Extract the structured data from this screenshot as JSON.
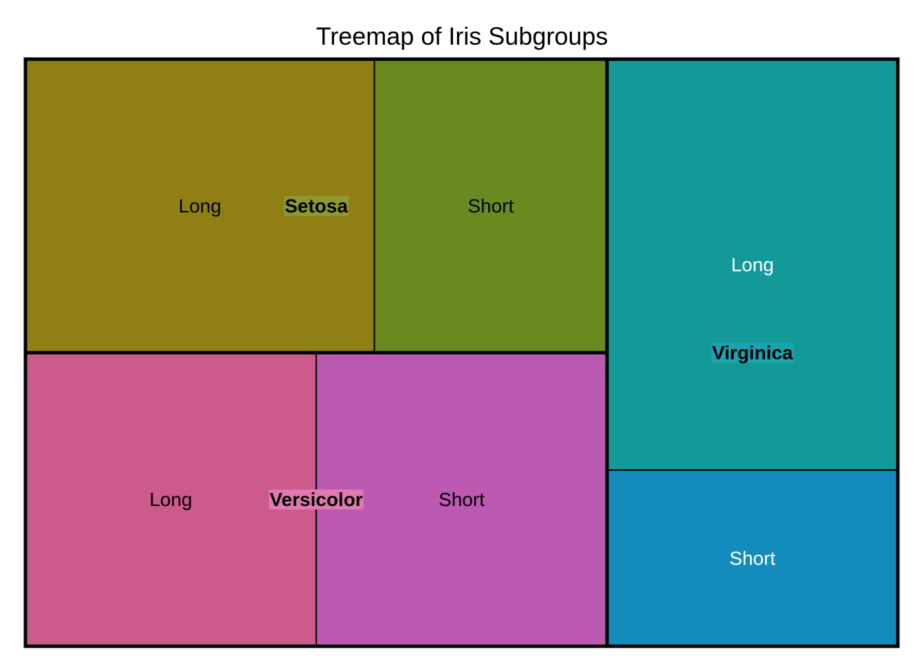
{
  "chart_data": {
    "type": "treemap",
    "title": "Treemap of Iris Subgroups",
    "groups": [
      {
        "name": "Setosa",
        "label_bg": "#8e9a2e",
        "children": [
          {
            "name": "Long",
            "value": 30,
            "color": "#8f7f14",
            "text_color": "#000000"
          },
          {
            "name": "Short",
            "value": 20,
            "color": "#6a8a20",
            "text_color": "#000000"
          }
        ]
      },
      {
        "name": "Versicolor",
        "label_bg": "#e07ab0",
        "children": [
          {
            "name": "Long",
            "value": 25,
            "color": "#cc5a8b",
            "text_color": "#000000"
          },
          {
            "name": "Short",
            "value": 25,
            "color": "#bc5ab3",
            "text_color": "#000000"
          }
        ]
      },
      {
        "name": "Virginica",
        "label_bg": "#1aa3b0",
        "children": [
          {
            "name": "Long",
            "value": 35,
            "color": "#139a98",
            "text_color": "#ffffff"
          },
          {
            "name": "Short",
            "value": 15,
            "color": "#148bbd",
            "text_color": "#ffffff"
          }
        ]
      }
    ]
  }
}
